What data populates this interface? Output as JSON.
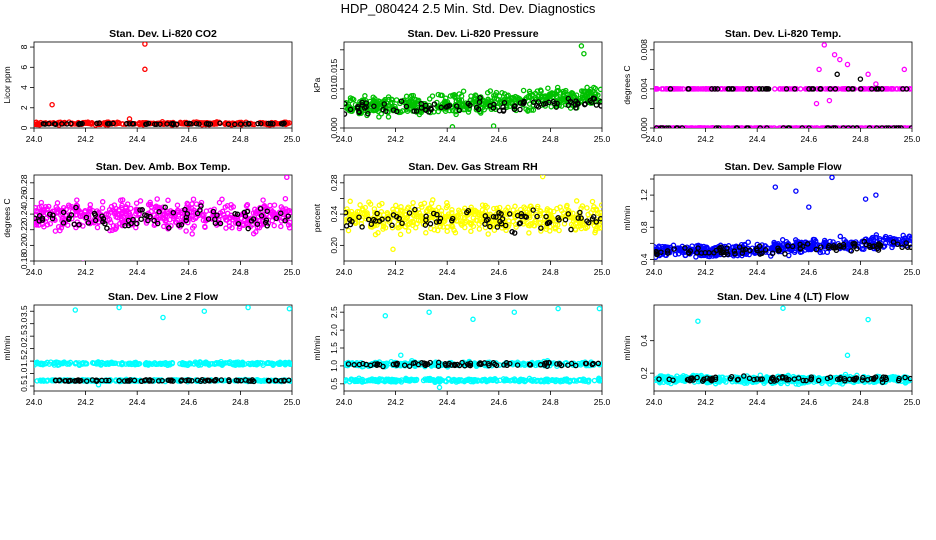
{
  "page": {
    "title": "HDP_080424  2.5 Min. Std. Dev. Diagnostics"
  },
  "chart_data": [
    {
      "type": "scatter",
      "title": "Stan. Dev. Li-820 CO2",
      "ylabel": "Licor ppm",
      "xlim": [
        24.0,
        25.0
      ],
      "ylim": [
        0,
        8.5
      ],
      "xticks": [
        "24.0",
        "24.2",
        "24.4",
        "24.6",
        "24.8",
        "25.0"
      ],
      "yticks": [
        0,
        2,
        4,
        6,
        8
      ],
      "ytick_labels": [
        "0",
        "2",
        "4",
        "6",
        "8"
      ],
      "series": [
        {
          "name": "colored",
          "color": "#ff0000",
          "base": 0.45,
          "noise": 0.12,
          "count": 260,
          "outliers": [
            [
              24.07,
              2.3
            ],
            [
              24.43,
              8.3
            ],
            [
              24.43,
              5.8
            ],
            [
              24.37,
              0.9
            ]
          ]
        },
        {
          "name": "black",
          "color": "#000000",
          "base": 0.42,
          "noise": 0.05,
          "count": 60,
          "outliers": []
        }
      ]
    },
    {
      "type": "scatter",
      "title": "Stan. Dev. Li-820 Pressure",
      "ylabel": "kPa",
      "xlim": [
        24.0,
        25.0
      ],
      "ylim": [
        0,
        0.022
      ],
      "xticks": [
        "24.0",
        "24.2",
        "24.4",
        "24.6",
        "24.8",
        "25.0"
      ],
      "yticks": [
        0,
        0.005,
        0.01,
        0.015,
        0.02
      ],
      "ytick_labels": [
        "0.000",
        "",
        "0.010",
        "0.015",
        ""
      ],
      "series": [
        {
          "name": "colored",
          "color": "#00c000",
          "base": 0.0055,
          "trend": 0.0035,
          "noise": 0.0022,
          "count": 500,
          "outliers": [
            [
              24.92,
              0.021
            ],
            [
              24.93,
              0.019
            ],
            [
              24.58,
              0.0005
            ],
            [
              24.42,
              0.0003
            ]
          ]
        },
        {
          "name": "black",
          "color": "#000000",
          "base": 0.005,
          "trend": 0.002,
          "noise": 0.0015,
          "count": 90,
          "outliers": []
        }
      ]
    },
    {
      "type": "scatter",
      "title": "Stan. Dev. Li-820 Temp.",
      "ylabel": "degrees C",
      "xlim": [
        24.0,
        25.0
      ],
      "ylim": [
        0,
        0.0088
      ],
      "xticks": [
        "24.0",
        "24.2",
        "24.4",
        "24.6",
        "24.8",
        "25.0"
      ],
      "yticks": [
        0,
        0.002,
        0.004,
        0.006,
        0.008
      ],
      "ytick_labels": [
        "0.000",
        "",
        "0.004",
        "",
        "0.008"
      ],
      "series": [
        {
          "name": "colored",
          "color": "#ff00ff",
          "levels": [
            0,
            0.004
          ],
          "count": 420,
          "outliers": [
            [
              24.66,
              0.0085
            ],
            [
              24.7,
              0.0075
            ],
            [
              24.72,
              0.007
            ],
            [
              24.75,
              0.0065
            ],
            [
              24.64,
              0.006
            ],
            [
              24.83,
              0.0055
            ],
            [
              24.97,
              0.006
            ],
            [
              24.86,
              0.0045
            ],
            [
              24.63,
              0.0025
            ],
            [
              24.68,
              0.0028
            ]
          ]
        },
        {
          "name": "black",
          "color": "#000000",
          "levels": [
            0,
            0.004
          ],
          "count": 80,
          "outliers": [
            [
              24.71,
              0.0055
            ],
            [
              24.8,
              0.005
            ]
          ]
        }
      ]
    },
    {
      "type": "scatter",
      "title": "Stan. Dev. Amb. Box Temp.",
      "ylabel": "degrees C",
      "xlim": [
        24.0,
        25.0
      ],
      "ylim": [
        0.18,
        0.29
      ],
      "xticks": [
        "24.0",
        "24.2",
        "24.4",
        "24.6",
        "24.8",
        "25.0"
      ],
      "yticks": [
        0.18,
        0.2,
        0.22,
        0.24,
        0.26,
        0.28
      ],
      "ytick_labels": [
        "0.18",
        "0.20",
        "0.22",
        "0.24",
        "0.26",
        "0.28"
      ],
      "series": [
        {
          "name": "colored",
          "color": "#ff00ff",
          "base": 0.238,
          "noise": 0.016,
          "count": 500,
          "outliers": [
            [
              24.98,
              0.287
            ],
            [
              24.19,
              0.177
            ]
          ]
        },
        {
          "name": "black",
          "color": "#000000",
          "base": 0.236,
          "noise": 0.012,
          "count": 80,
          "outliers": []
        }
      ]
    },
    {
      "type": "scatter",
      "title": "Stan. Dev. Gas Stream RH",
      "ylabel": "percent",
      "xlim": [
        24.0,
        25.0
      ],
      "ylim": [
        0.18,
        0.29
      ],
      "xticks": [
        "24.0",
        "24.2",
        "24.4",
        "24.6",
        "24.8",
        "25.0"
      ],
      "yticks": [
        0.2,
        0.22,
        0.24,
        0.26,
        0.28
      ],
      "ytick_labels": [
        "0.20",
        "",
        "0.24",
        "",
        "0.28"
      ],
      "series": [
        {
          "name": "colored",
          "color": "#ffff00",
          "base": 0.235,
          "noise": 0.016,
          "count": 520,
          "outliers": [
            [
              24.77,
              0.288
            ],
            [
              24.19,
              0.195
            ]
          ]
        },
        {
          "name": "black",
          "color": "#000000",
          "base": 0.233,
          "noise": 0.012,
          "count": 80,
          "outliers": []
        }
      ]
    },
    {
      "type": "scatter",
      "title": "Stan. Dev. Sample Flow",
      "ylabel": "ml/min",
      "xlim": [
        24.0,
        25.0
      ],
      "ylim": [
        0.38,
        1.45
      ],
      "xticks": [
        "24.0",
        "24.2",
        "24.4",
        "24.6",
        "24.8",
        "25.0"
      ],
      "yticks": [
        0.4,
        0.6,
        0.8,
        1.0,
        1.2,
        1.4
      ],
      "ytick_labels": [
        "0.4",
        "",
        "0.8",
        "",
        "1.2",
        ""
      ],
      "series": [
        {
          "name": "colored",
          "color": "#0000ff",
          "base": 0.5,
          "trend": 0.18,
          "noise": 0.07,
          "count": 480,
          "outliers": [
            [
              24.69,
              1.42
            ],
            [
              24.47,
              1.3
            ],
            [
              24.55,
              1.25
            ],
            [
              24.86,
              1.2
            ],
            [
              24.82,
              1.15
            ],
            [
              24.6,
              1.05
            ]
          ]
        },
        {
          "name": "black",
          "color": "#000000",
          "base": 0.5,
          "trend": 0.12,
          "noise": 0.05,
          "count": 90,
          "outliers": []
        }
      ]
    },
    {
      "type": "scatter",
      "title": "Stan. Dev. Line 2 Flow",
      "ylabel": "ml/min",
      "xlim": [
        24.0,
        25.0
      ],
      "ylim": [
        0.3,
        3.75
      ],
      "xticks": [
        "24.0",
        "24.2",
        "24.4",
        "24.6",
        "24.8",
        "25.0"
      ],
      "yticks": [
        0.5,
        1.0,
        1.5,
        2.0,
        2.5,
        3.0,
        3.5
      ],
      "ytick_labels": [
        "0.5",
        "1.0",
        "1.5",
        "2.0",
        "2.5",
        "3.0",
        "3.5"
      ],
      "series": [
        {
          "name": "colored",
          "color": "#00ffff",
          "bands": [
            [
              1.4,
              0.06
            ],
            [
              0.72,
              0.03
            ]
          ],
          "count": 520,
          "outliers": [
            [
              24.16,
              3.55
            ],
            [
              24.33,
              3.65
            ],
            [
              24.5,
              3.25
            ],
            [
              24.66,
              3.5
            ],
            [
              24.83,
              3.65
            ],
            [
              24.99,
              3.6
            ],
            [
              24.25,
              0.55
            ]
          ]
        },
        {
          "name": "black",
          "color": "#000000",
          "bands": [
            [
              0.72,
              0.03
            ]
          ],
          "count": 80,
          "outliers": []
        }
      ]
    },
    {
      "type": "scatter",
      "title": "Stan. Dev. Line 3 Flow",
      "ylabel": "ml/min",
      "xlim": [
        24.0,
        25.0
      ],
      "ylim": [
        0.3,
        2.7
      ],
      "xticks": [
        "24.0",
        "24.2",
        "24.4",
        "24.6",
        "24.8",
        "25.0"
      ],
      "yticks": [
        0.5,
        1.0,
        1.5,
        2.0,
        2.5
      ],
      "ytick_labels": [
        "0.5",
        "1.0",
        "1.5",
        "2.0",
        "2.5"
      ],
      "series": [
        {
          "name": "colored",
          "color": "#00ffff",
          "bands": [
            [
              1.05,
              0.06
            ],
            [
              0.6,
              0.04
            ]
          ],
          "count": 520,
          "outliers": [
            [
              24.16,
              2.4
            ],
            [
              24.33,
              2.5
            ],
            [
              24.5,
              2.3
            ],
            [
              24.66,
              2.5
            ],
            [
              24.83,
              2.6
            ],
            [
              24.99,
              2.6
            ],
            [
              24.22,
              1.3
            ],
            [
              24.37,
              0.4
            ]
          ]
        },
        {
          "name": "black",
          "color": "#000000",
          "bands": [
            [
              1.05,
              0.05
            ]
          ],
          "count": 80,
          "outliers": []
        }
      ]
    },
    {
      "type": "scatter",
      "title": "Stan. Dev. Line 4 (LT) Flow",
      "ylabel": "ml/min",
      "xlim": [
        24.0,
        25.0
      ],
      "ylim": [
        0.09,
        0.62
      ],
      "xticks": [
        "24.0",
        "24.2",
        "24.4",
        "24.6",
        "24.8",
        "25.0"
      ],
      "yticks": [
        0.2,
        0.4
      ],
      "ytick_labels": [
        "0.2",
        "0.4"
      ],
      "series": [
        {
          "name": "colored",
          "color": "#00ffff",
          "bands": [
            [
              0.16,
              0.02
            ]
          ],
          "count": 520,
          "outliers": [
            [
              24.17,
              0.52
            ],
            [
              24.5,
              0.6
            ],
            [
              24.75,
              0.31
            ],
            [
              24.83,
              0.53
            ]
          ]
        },
        {
          "name": "black",
          "color": "#000000",
          "bands": [
            [
              0.165,
              0.015
            ]
          ],
          "count": 80,
          "outliers": []
        }
      ]
    }
  ]
}
